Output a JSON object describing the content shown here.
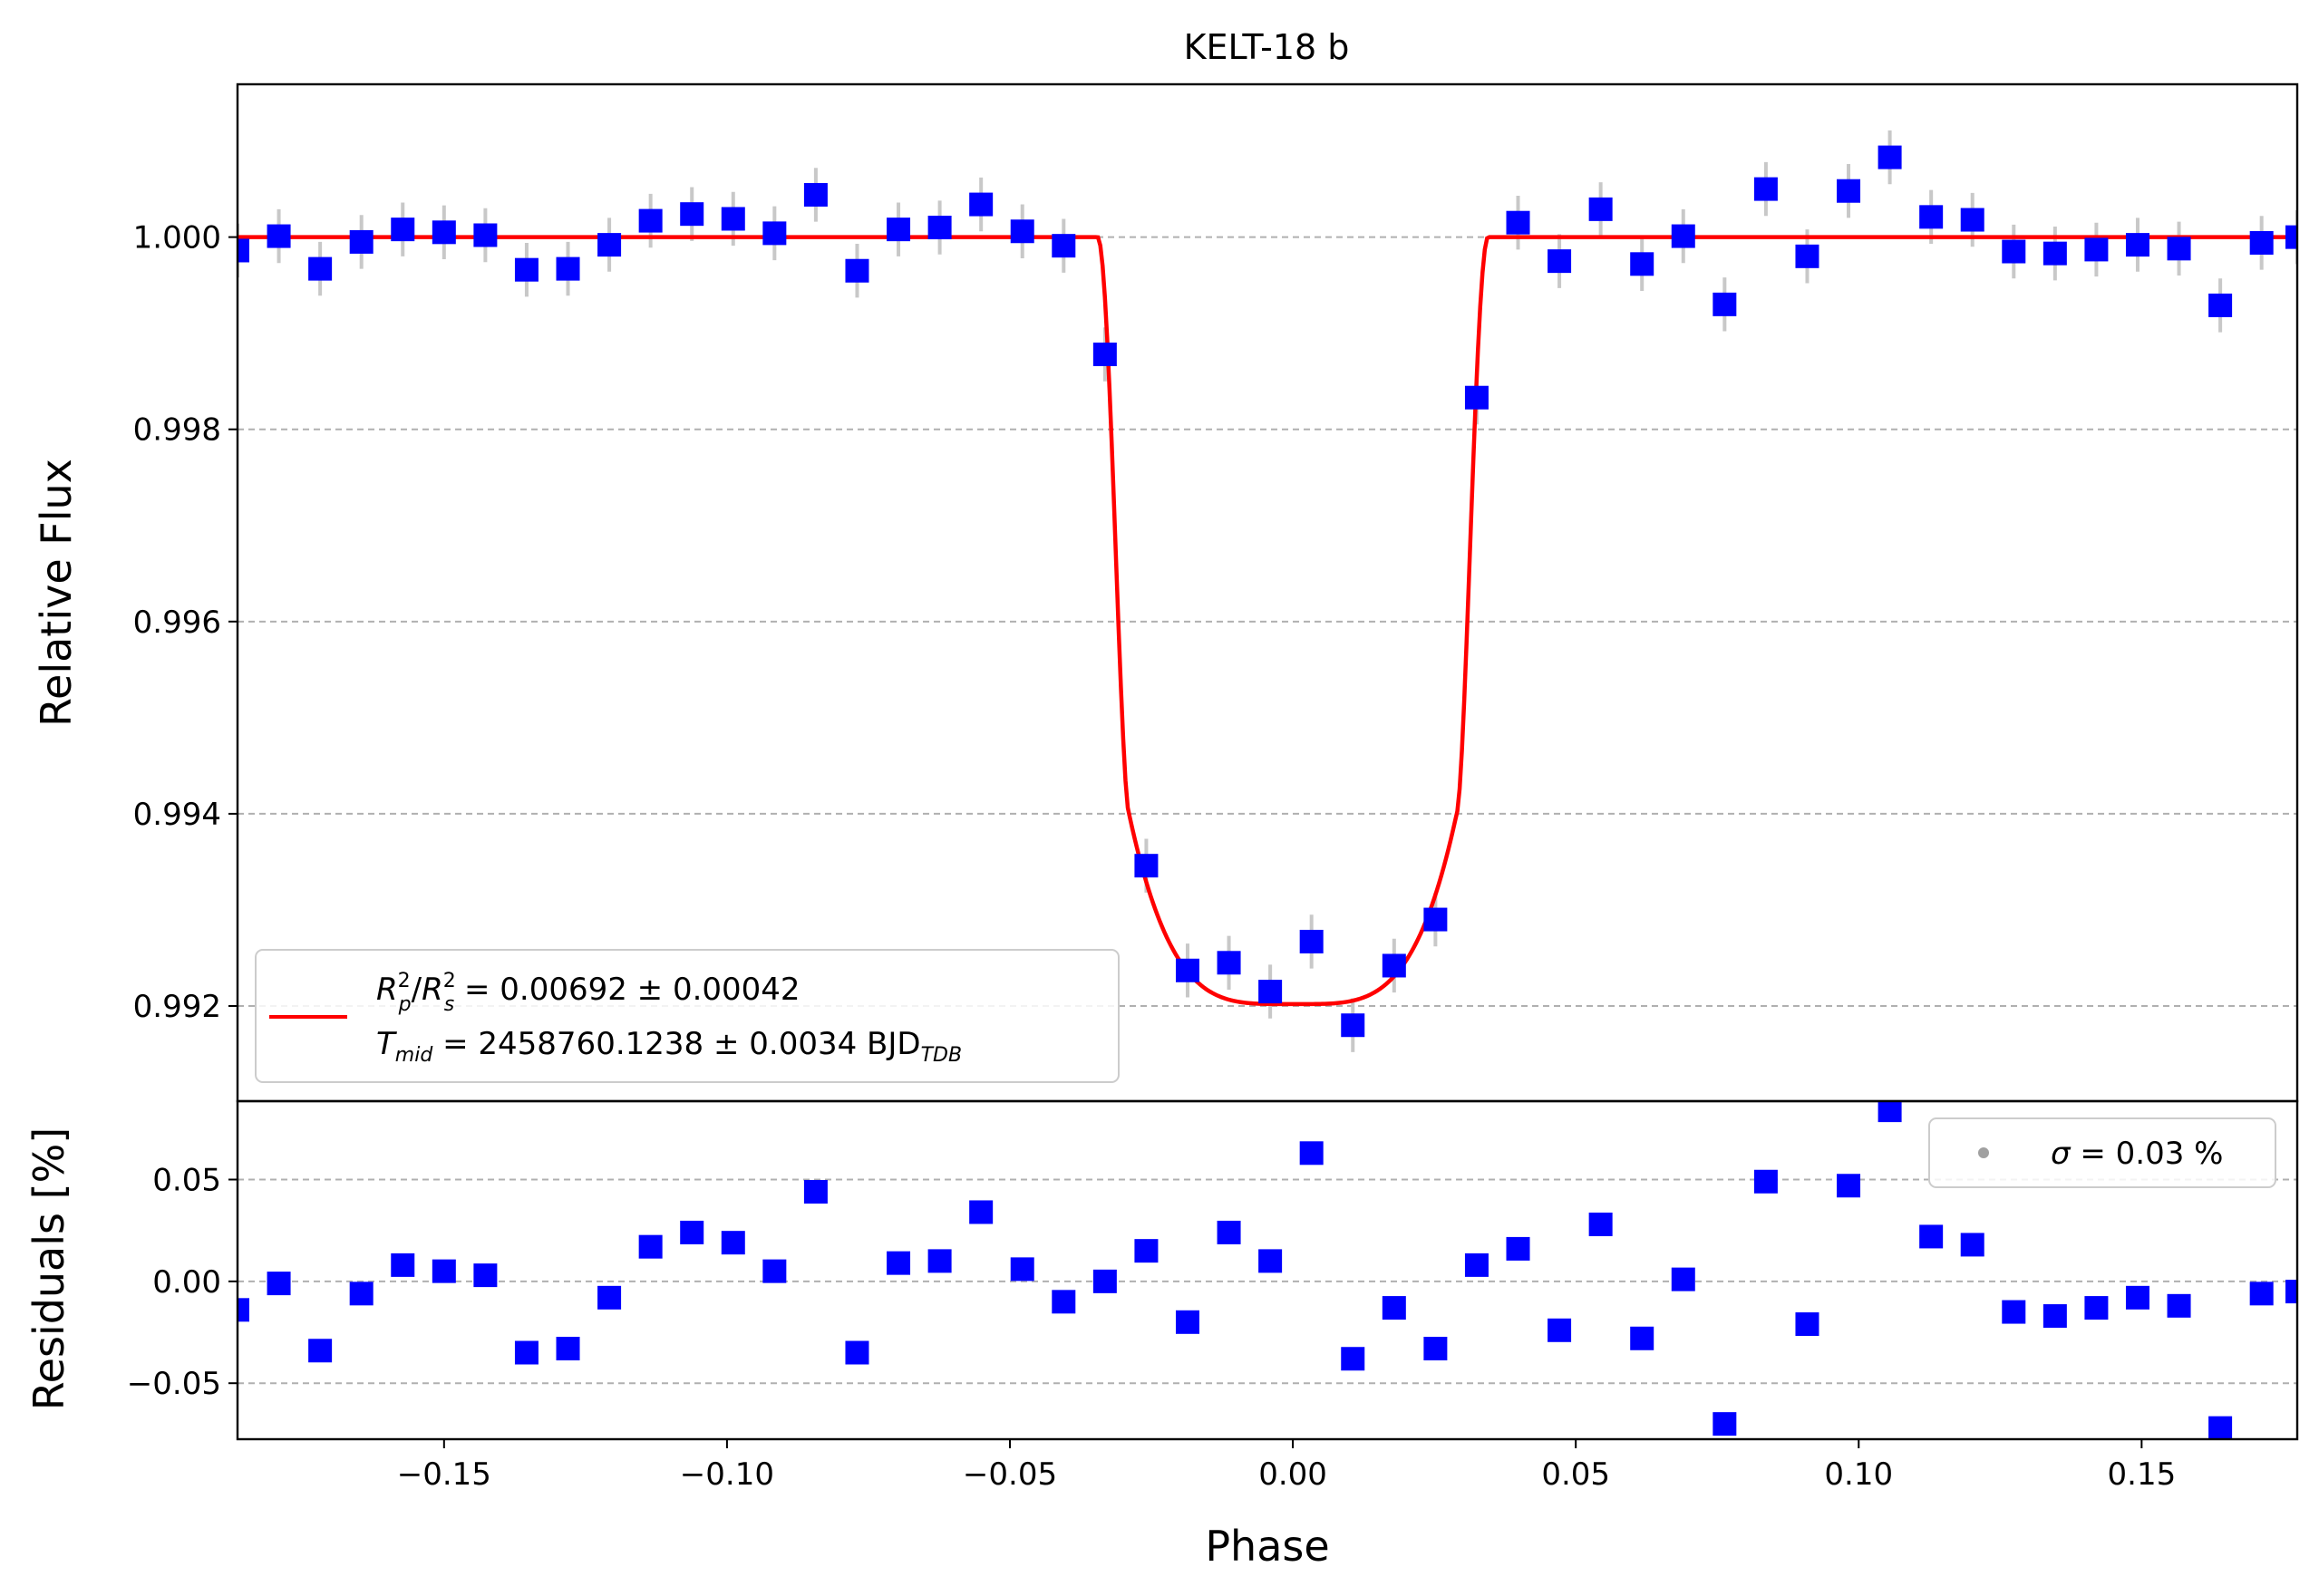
{
  "chart_data": {
    "type": "scatter",
    "title": "KELT-18 b",
    "xlabel": "Phase",
    "xlim": [
      -0.1865,
      0.1775
    ],
    "xticks": [
      "−0.15",
      "−0.10",
      "−0.05",
      "0.00",
      "0.05",
      "0.10",
      "0.15"
    ],
    "xtick_values": [
      -0.15,
      -0.1,
      -0.05,
      0.0,
      0.05,
      0.1,
      0.15
    ],
    "colors": {
      "data": "#0000ff",
      "model": "#ff0000",
      "errorbar": "#c8c8c8",
      "grid": "#b0b0b0",
      "legend_marker": "#a0a0a0"
    },
    "flux_panel": {
      "ylabel": "Relative Flux",
      "ylim": [
        0.99101,
        1.00159
      ],
      "yticks": [
        "0.992",
        "0.994",
        "0.996",
        "0.998",
        "1.000"
      ],
      "ytick_values": [
        0.992,
        0.994,
        0.996,
        0.998,
        1.0
      ],
      "grid": "horizontal dashed",
      "error": 0.00028,
      "model": {
        "name_line1": "R²p/R²s = 0.00692 ± 0.00042",
        "name_line2": "Tmid = 2458760.1238 ± 0.0034 BJDTDB",
        "label_parts": {
          "rp": "R",
          "rp_sup": "2",
          "rp_sub": "p",
          "slash": "/",
          "rs": "R",
          "rs_sup": "2",
          "rs_sub": "s",
          "rp_value": " = 0.00692 ± 0.00042",
          "tmid": "T",
          "tmid_sub": "mid",
          "tmid_value": " = 2458760.1238 ± 0.0034 BJD",
          "tmid_unit_sub": "TDB"
        },
        "depth": 0.00798,
        "t14_half": 0.0345,
        "t23_half": 0.029,
        "limb_factor": 0.25
      },
      "legend_position": "lower-left",
      "x": [
        -0.1865,
        -0.1792,
        -0.1719,
        -0.1646,
        -0.1573,
        -0.15,
        -0.1427,
        -0.1354,
        -0.1281,
        -0.1208,
        -0.1135,
        -0.1062,
        -0.0989,
        -0.0916,
        -0.0843,
        -0.077,
        -0.0697,
        -0.0624,
        -0.0551,
        -0.0478,
        -0.0405,
        -0.0332,
        -0.0259,
        -0.0186,
        -0.0113,
        -0.004,
        0.0033,
        0.0106,
        0.0179,
        0.0252,
        0.0325,
        0.0398,
        0.0471,
        0.0544,
        0.0617,
        0.069,
        0.0763,
        0.0836,
        0.0909,
        0.0982,
        0.1055,
        0.1128,
        0.1201,
        0.1274,
        0.1347,
        0.142,
        0.1493,
        0.1566,
        0.1639,
        0.1712,
        0.1775
      ],
      "y": [
        0.99986,
        1.00001,
        0.99967,
        0.99995,
        1.00008,
        1.00005,
        1.00002,
        0.99966,
        0.99967,
        0.99992,
        1.00017,
        1.00024,
        1.00019,
        1.00004,
        1.00044,
        0.99965,
        1.00008,
        1.0001,
        1.00034,
        1.00006,
        0.99991,
        0.99878,
        0.99346,
        0.99237,
        0.99245,
        0.99215,
        0.99267,
        0.9918,
        0.99242,
        0.9929,
        0.99833,
        1.00015,
        0.99975,
        1.00029,
        0.99972,
        1.00001,
        0.9993,
        1.0005,
        0.9998,
        1.00048,
        1.00083,
        1.00021,
        1.00018,
        0.99985,
        0.99983,
        0.99987,
        0.99992,
        0.99988,
        0.99929,
        0.99994,
        1.0
      ]
    },
    "residual_panel": {
      "ylabel": "Residuals [%]",
      "ylim": [
        -0.0775,
        0.0885
      ],
      "yticks": [
        "−0.05",
        "0.00",
        "0.05"
      ],
      "ytick_values": [
        -0.05,
        0.0,
        0.05
      ],
      "grid": "horizontal dashed",
      "legend_label": "σ = 0.03 %",
      "legend_label_parts": {
        "sigma": "σ",
        "value": " = 0.03 %"
      },
      "legend_position": "upper-right",
      "x": [
        -0.1865,
        -0.1792,
        -0.1719,
        -0.1646,
        -0.1573,
        -0.15,
        -0.1427,
        -0.1354,
        -0.1281,
        -0.1208,
        -0.1135,
        -0.1062,
        -0.0989,
        -0.0916,
        -0.0843,
        -0.077,
        -0.0697,
        -0.0624,
        -0.0551,
        -0.0478,
        -0.0405,
        -0.0332,
        -0.0259,
        -0.0186,
        -0.0113,
        -0.004,
        0.0033,
        0.0106,
        0.0179,
        0.0252,
        0.0325,
        0.0398,
        0.0471,
        0.0544,
        0.0617,
        0.069,
        0.0763,
        0.0836,
        0.0909,
        0.0982,
        0.1055,
        0.1128,
        0.1201,
        0.1274,
        0.1347,
        0.142,
        0.1493,
        0.1566,
        0.1639,
        0.1712,
        0.1775
      ],
      "y": [
        -0.014,
        -0.001,
        -0.034,
        -0.006,
        0.008,
        0.005,
        0.003,
        -0.035,
        -0.033,
        -0.008,
        0.017,
        0.024,
        0.019,
        0.005,
        0.044,
        -0.035,
        0.009,
        0.01,
        0.034,
        0.006,
        -0.01,
        0.0,
        0.015,
        -0.02,
        0.024,
        0.01,
        0.063,
        -0.038,
        -0.013,
        -0.033,
        0.008,
        0.016,
        -0.024,
        0.028,
        -0.028,
        0.001,
        -0.07,
        0.049,
        -0.021,
        0.047,
        0.084,
        0.022,
        0.018,
        -0.015,
        -0.017,
        -0.013,
        -0.008,
        -0.012,
        -0.072,
        -0.006,
        -0.005
      ]
    }
  }
}
